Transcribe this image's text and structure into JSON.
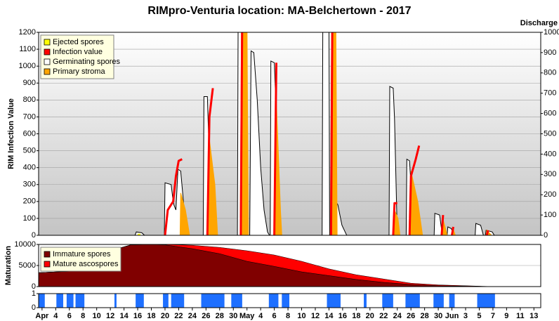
{
  "chart_data": [
    {
      "type": "line",
      "title": "RIMpro-Venturia location:  MA-Belchertown - 2017",
      "ylabel": "RIM Infection Value",
      "y2label": "Discharge",
      "xlim": [
        1.5,
        75
      ],
      "ylim": [
        0,
        1200
      ],
      "yticks": [
        0,
        100,
        200,
        300,
        400,
        500,
        600,
        700,
        800,
        900,
        1000,
        1100,
        1200
      ],
      "y2lim": [
        0,
        1000
      ],
      "y2ticks": [
        0,
        100,
        200,
        300,
        400,
        500,
        600,
        700,
        800,
        900,
        1000
      ],
      "grid": true,
      "legend": "top-left",
      "series": [
        {
          "name": "Ejected spores",
          "color": "#ffff00",
          "fill": false,
          "x": [
            16.0,
            16.4
          ],
          "values": [
            5,
            5
          ]
        },
        {
          "name": "Infection value",
          "color": "#ff0000",
          "fill": false,
          "x": [
            20.0,
            20.4,
            21.2,
            21.6,
            22.0,
            22.5,
            null,
            26.2,
            26.5,
            27.0,
            null,
            31.1,
            31.3,
            null,
            36.0,
            36.3,
            null,
            44.3,
            44.5,
            null,
            53.4,
            53.6,
            54.0,
            null,
            55.8,
            56.0,
            56.7,
            57.2,
            null,
            60.5,
            60.7,
            null,
            62.0,
            62.2,
            null,
            67.1,
            67.3
          ],
          "values": [
            0,
            150,
            200,
            350,
            440,
            450,
            null,
            0,
            700,
            870,
            null,
            0,
            1300,
            null,
            0,
            1020,
            null,
            0,
            1300,
            null,
            0,
            190,
            190,
            null,
            0,
            350,
            450,
            530,
            null,
            0,
            120,
            null,
            0,
            50,
            null,
            0,
            30
          ]
        },
        {
          "name": "Germinating spores",
          "color": "#ffffff",
          "fill": true,
          "x": [
            15.6,
            15.8,
            16.6,
            17.0,
            null,
            19.9,
            20.0,
            20.9,
            21.2,
            21.3,
            21.6,
            21.9,
            22.3,
            22.7,
            23.0,
            23.3,
            null,
            25.6,
            25.7,
            26.2,
            26.6,
            26.9,
            null,
            30.6,
            30.7,
            31.4,
            31.5,
            null,
            32.4,
            32.6,
            33.0,
            33.5,
            34.0,
            34.5,
            35.0,
            35.3,
            null,
            35.4,
            35.5,
            36.0,
            36.4,
            36.6,
            null,
            43.0,
            43.1,
            44.0,
            44.1,
            null,
            44.6,
            44.7,
            45.3,
            45.9,
            46.6,
            null,
            52.8,
            52.9,
            53.4,
            53.6,
            54.0,
            null,
            55.3,
            55.4,
            55.8,
            56.2,
            56.6,
            null,
            59.4,
            59.5,
            60.2,
            60.6,
            null,
            61.3,
            61.4,
            61.9,
            62.3,
            null,
            65.4,
            65.5,
            66.2,
            66.6,
            null,
            66.9,
            67.0,
            67.9,
            68.2
          ],
          "values": [
            0,
            20,
            15,
            0,
            null,
            0,
            310,
            300,
            200,
            180,
            150,
            390,
            380,
            200,
            50,
            0,
            null,
            0,
            820,
            820,
            300,
            0,
            null,
            0,
            1300,
            1300,
            0,
            null,
            0,
            1090,
            1080,
            800,
            400,
            150,
            20,
            0,
            null,
            0,
            1030,
            1020,
            600,
            0,
            null,
            0,
            1300,
            1300,
            0,
            null,
            0,
            220,
            180,
            60,
            0,
            null,
            0,
            880,
            870,
            690,
            0,
            null,
            0,
            450,
            440,
            150,
            0,
            null,
            0,
            130,
            120,
            0,
            null,
            0,
            50,
            40,
            0,
            null,
            0,
            70,
            60,
            0,
            null,
            0,
            30,
            20,
            0
          ]
        },
        {
          "name": "Primary stroma",
          "color": "#ffa500",
          "fill": true,
          "x": [
            22.2,
            22.3,
            23.0,
            23.6,
            null,
            26.3,
            26.4,
            27.3,
            27.7,
            null,
            31.0,
            31.2,
            32.0,
            32.2,
            null,
            36.1,
            36.2,
            36.9,
            37.1,
            null,
            44.2,
            44.4,
            45.0,
            45.2,
            null,
            53.5,
            53.6,
            54.1,
            54.4,
            null,
            55.9,
            56.0,
            57.0,
            57.7,
            null,
            60.5,
            60.6,
            61.0,
            61.3,
            null,
            62.0,
            62.1,
            62.5,
            null,
            67.0,
            67.1,
            67.8
          ],
          "values": [
            0,
            250,
            150,
            0,
            null,
            0,
            600,
            300,
            0,
            null,
            0,
            1300,
            1300,
            0,
            null,
            0,
            900,
            150,
            0,
            null,
            0,
            1300,
            1300,
            0,
            null,
            0,
            150,
            100,
            0,
            null,
            0,
            380,
            200,
            0,
            null,
            0,
            110,
            50,
            0,
            null,
            0,
            50,
            0,
            null,
            0,
            30,
            0
          ]
        }
      ]
    },
    {
      "type": "area",
      "ylabel": "Maturation",
      "xlim": [
        1.5,
        75
      ],
      "ylim": [
        0,
        10000
      ],
      "yticks": [
        0,
        5000,
        10000
      ],
      "grid": true,
      "stacked": true,
      "legend": "top-left",
      "x": [
        1.5,
        7,
        12,
        15,
        18,
        20,
        24,
        28,
        32,
        36,
        40,
        44,
        48,
        52,
        56,
        60,
        64,
        68
      ],
      "series": [
        {
          "name": "Immature spores",
          "color": "#800000",
          "values": [
            3300,
            3700,
            8500,
            9900,
            10000,
            9900,
            9000,
            7800,
            6000,
            4800,
            3500,
            2600,
            1700,
            1000,
            500,
            200,
            100,
            0
          ]
        },
        {
          "name": "Mature ascospores",
          "color": "#ff0000",
          "values": [
            0,
            0,
            0,
            0,
            0,
            100,
            800,
            1500,
            2500,
            2700,
            2500,
            1600,
            1100,
            800,
            300,
            200,
            100,
            0
          ]
        }
      ]
    },
    {
      "type": "bar",
      "xlim": [
        1.5,
        75
      ],
      "ylim": [
        0,
        1
      ],
      "yticks": [
        0,
        1
      ],
      "color": "#1e6fff",
      "intervals": [
        [
          1.4,
          2.4
        ],
        [
          4.1,
          5.1
        ],
        [
          5.6,
          6.6
        ],
        [
          6.9,
          8.2
        ],
        [
          12.6,
          12.9
        ],
        [
          15.7,
          16.9
        ],
        [
          19.7,
          20.5
        ],
        [
          20.9,
          22.8
        ],
        [
          25.3,
          28.7
        ],
        [
          29.7,
          31.3
        ],
        [
          35.2,
          36.6
        ],
        [
          37.1,
          38.2
        ],
        [
          43.7,
          45.7
        ],
        [
          49.1,
          49.5
        ],
        [
          51.8,
          53.4
        ],
        [
          55.2,
          57.3
        ],
        [
          59.3,
          60.8
        ],
        [
          61.6,
          62.4
        ],
        [
          65.7,
          68.3
        ]
      ],
      "values": [
        1,
        1,
        1,
        1,
        1,
        1,
        1,
        1,
        1,
        1,
        1,
        1,
        1,
        1,
        1,
        1,
        1,
        1,
        1
      ],
      "xticks": [
        {
          "value": 2,
          "label": "Apr"
        },
        4,
        6,
        8,
        10,
        12,
        14,
        16,
        18,
        20,
        22,
        24,
        26,
        28,
        30,
        {
          "value": 32,
          "label": "May"
        },
        {
          "value": 34,
          "label": "4"
        },
        {
          "value": 36,
          "label": "6"
        },
        {
          "value": 38,
          "label": "8"
        },
        {
          "value": 40,
          "label": "10"
        },
        {
          "value": 42,
          "label": "12"
        },
        {
          "value": 44,
          "label": "14"
        },
        {
          "value": 46,
          "label": "16"
        },
        {
          "value": 48,
          "label": "18"
        },
        {
          "value": 50,
          "label": "20"
        },
        {
          "value": 52,
          "label": "22"
        },
        {
          "value": 54,
          "label": "24"
        },
        {
          "value": 56,
          "label": "26"
        },
        {
          "value": 58,
          "label": "28"
        },
        {
          "value": 60,
          "label": "30"
        },
        {
          "value": 62,
          "label": "Jun"
        },
        {
          "value": 64,
          "label": "3"
        },
        {
          "value": 66,
          "label": "5"
        },
        {
          "value": 68,
          "label": "7"
        },
        {
          "value": 70,
          "label": "9"
        },
        {
          "value": 72,
          "label": "11"
        },
        {
          "value": 74,
          "label": "13"
        }
      ]
    }
  ]
}
